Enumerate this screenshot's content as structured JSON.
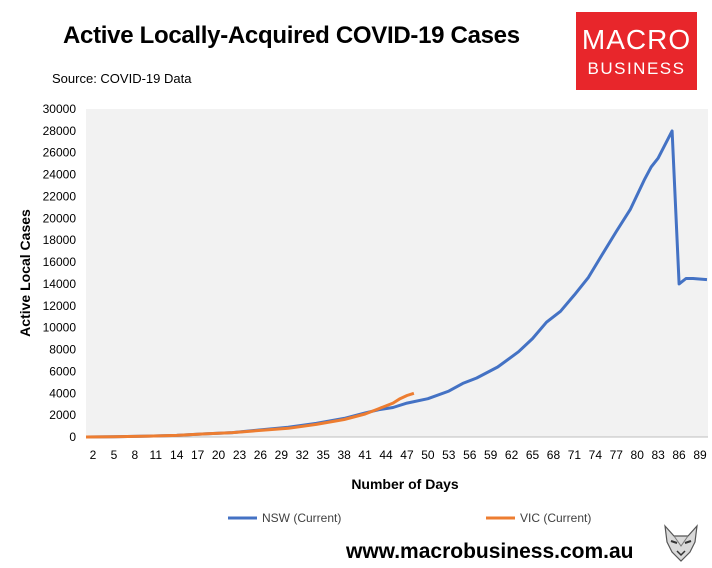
{
  "header": {
    "title": "Active Locally-Acquired COVID-19 Cases",
    "source": "Source: COVID-19 Data"
  },
  "logo": {
    "line1": "MACRO",
    "line2": "BUSINESS"
  },
  "footer": {
    "url": "www.macrobusiness.com.au",
    "mascot_icon": "wolf-icon"
  },
  "chart_data": {
    "type": "line",
    "title": "Active Locally-Acquired COVID-19 Cases",
    "xlabel": "Number of Days",
    "ylabel": "Active Local Cases",
    "xlim": [
      1,
      89
    ],
    "ylim": [
      0,
      30000
    ],
    "x_ticks": [
      2,
      5,
      8,
      11,
      14,
      17,
      20,
      23,
      26,
      29,
      32,
      35,
      38,
      41,
      44,
      47,
      50,
      53,
      56,
      59,
      62,
      65,
      68,
      71,
      74,
      77,
      80,
      83,
      86,
      89
    ],
    "y_ticks": [
      0,
      2000,
      4000,
      6000,
      8000,
      10000,
      12000,
      14000,
      16000,
      18000,
      20000,
      22000,
      24000,
      26000,
      28000,
      30000
    ],
    "grid": false,
    "plot_background": "#f2f2f2",
    "legend_position": "bottom",
    "series": [
      {
        "name": "NSW (Current)",
        "color": "#4472c4",
        "points": [
          [
            1,
            0
          ],
          [
            5,
            20
          ],
          [
            10,
            80
          ],
          [
            14,
            150
          ],
          [
            18,
            280
          ],
          [
            22,
            400
          ],
          [
            26,
            650
          ],
          [
            30,
            900
          ],
          [
            34,
            1250
          ],
          [
            38,
            1700
          ],
          [
            41,
            2200
          ],
          [
            43,
            2500
          ],
          [
            45,
            2700
          ],
          [
            47,
            3100
          ],
          [
            50,
            3500
          ],
          [
            53,
            4200
          ],
          [
            55,
            4900
          ],
          [
            57,
            5400
          ],
          [
            60,
            6400
          ],
          [
            63,
            7800
          ],
          [
            65,
            9000
          ],
          [
            67,
            10500
          ],
          [
            69,
            11500
          ],
          [
            71,
            13000
          ],
          [
            73,
            14600
          ],
          [
            75,
            16700
          ],
          [
            77,
            18800
          ],
          [
            79,
            20800
          ],
          [
            81,
            23500
          ],
          [
            82,
            24700
          ],
          [
            83,
            25500
          ],
          [
            85,
            28000
          ],
          [
            86,
            14000
          ],
          [
            87,
            14500
          ],
          [
            88,
            14500
          ],
          [
            90,
            14400
          ]
        ]
      },
      {
        "name": "VIC (Current)",
        "color": "#ed7d31",
        "points": [
          [
            1,
            0
          ],
          [
            5,
            20
          ],
          [
            10,
            80
          ],
          [
            14,
            150
          ],
          [
            18,
            280
          ],
          [
            22,
            400
          ],
          [
            26,
            600
          ],
          [
            30,
            800
          ],
          [
            34,
            1150
          ],
          [
            38,
            1600
          ],
          [
            41,
            2100
          ],
          [
            43,
            2600
          ],
          [
            45,
            3100
          ],
          [
            46,
            3500
          ],
          [
            47,
            3800
          ],
          [
            48,
            4000
          ]
        ]
      }
    ]
  }
}
